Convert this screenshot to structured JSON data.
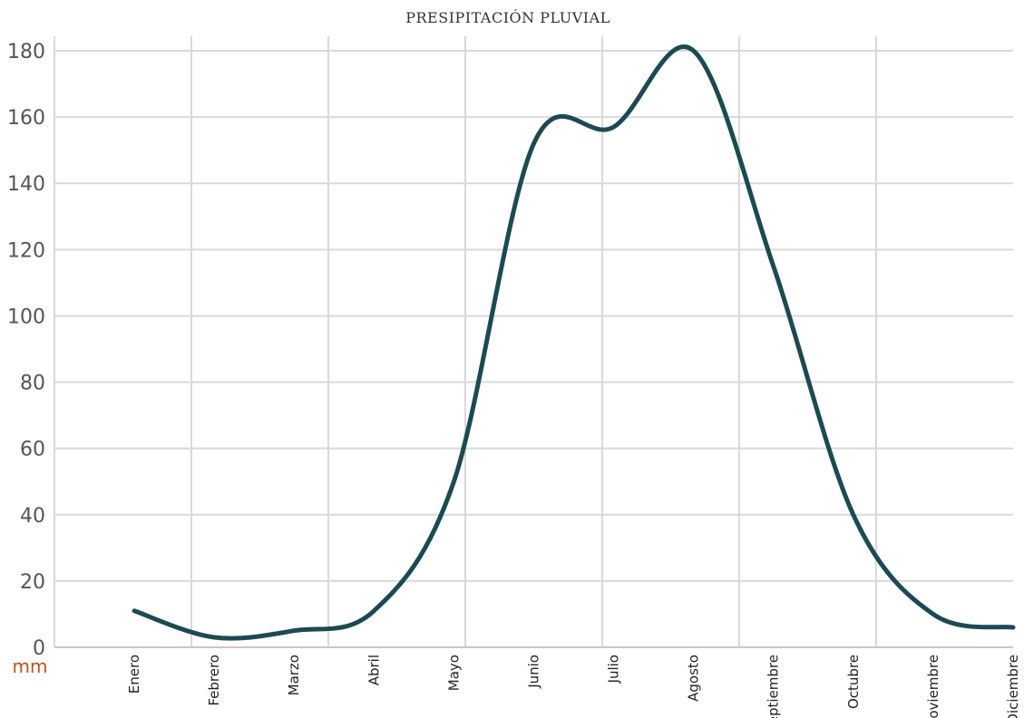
{
  "chart_data": {
    "type": "line",
    "title": "PRESIPITACIÓN PLUVIAL",
    "ylabel": "mm",
    "xlabel": "",
    "ylim": [
      0,
      180
    ],
    "yticks": [
      0,
      20,
      40,
      60,
      80,
      100,
      120,
      140,
      160,
      180
    ],
    "categories": [
      "Enero",
      "Febrero",
      "Marzo",
      "Abril",
      "Mayo",
      "Junio",
      "Julio",
      "Agosto",
      "Septiembre",
      "Octubre",
      "Noviembre",
      "Diciembre"
    ],
    "series": [
      {
        "values": [
          11,
          3,
          5,
          11,
          50,
          152,
          157,
          180,
          115,
          40,
          10,
          6
        ]
      }
    ],
    "grid": true,
    "colors": {
      "line": "#1b4a52",
      "grid": "#d9d9d9",
      "axis": "#c8c8c8",
      "unit": "#c0501e"
    }
  }
}
